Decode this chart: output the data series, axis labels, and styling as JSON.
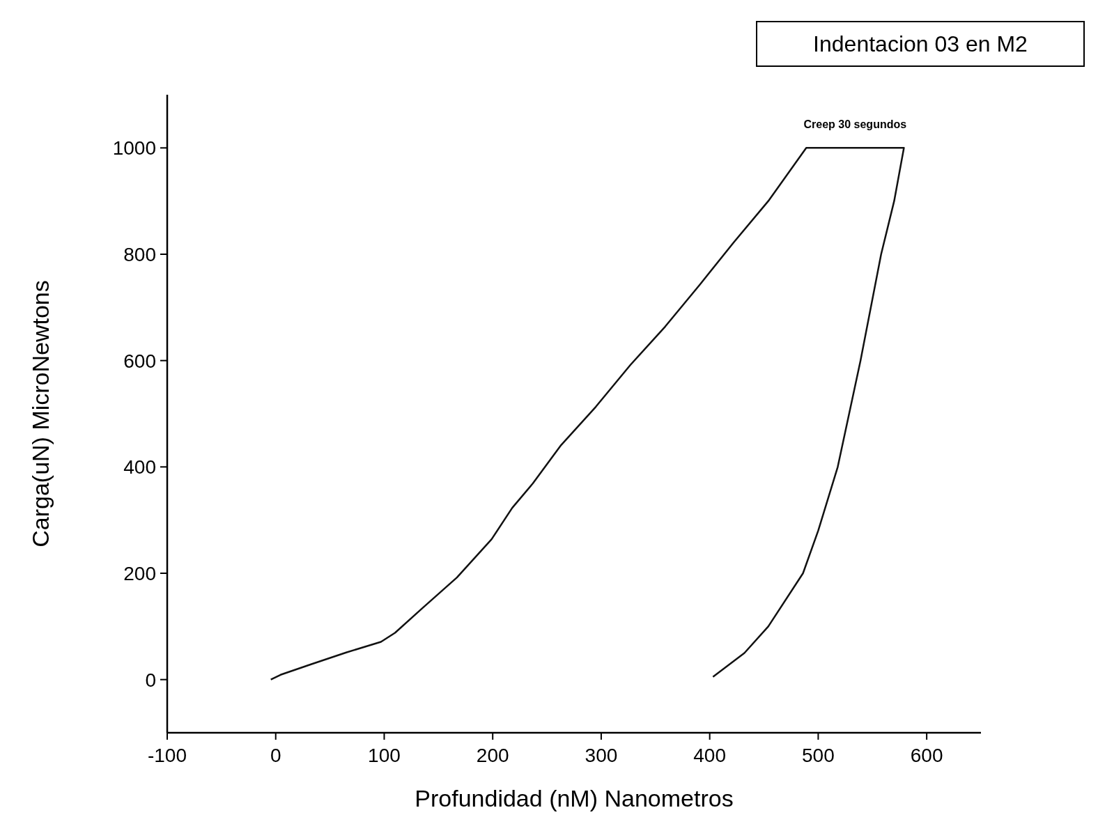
{
  "chart_data": {
    "type": "line",
    "title": "Indentacion 03 en M2",
    "xlabel": "Profundidad (nM) Nanometros",
    "ylabel": "Carga(uN) MicroNewtons",
    "xlim": [
      -100,
      650
    ],
    "ylim": [
      -100,
      1100
    ],
    "xticks": [
      -100,
      0,
      100,
      200,
      300,
      400,
      500,
      600
    ],
    "yticks": [
      0,
      200,
      400,
      600,
      800,
      1000
    ],
    "grid": false,
    "marker": "none",
    "line_style": "solid",
    "annotations": [
      {
        "text": "Creep 30 segundos",
        "x": 534,
        "y": 1000
      }
    ],
    "series": [
      {
        "color": "#111111",
        "x": [
          -4.5,
          4.5,
          33,
          65,
          97,
          110,
          135,
          167,
          199,
          218,
          237,
          263,
          295,
          327,
          359,
          391,
          422,
          454,
          489,
          579,
          570,
          558,
          539,
          518,
          500,
          486,
          454,
          432,
          403
        ],
        "values": [
          0,
          9,
          29,
          51,
          71,
          88,
          134,
          192,
          264,
          323,
          369,
          441,
          513,
          592,
          664,
          743,
          822,
          900,
          1000,
          1000,
          900,
          800,
          600,
          400,
          280,
          200,
          100,
          50,
          5
        ]
      }
    ]
  }
}
